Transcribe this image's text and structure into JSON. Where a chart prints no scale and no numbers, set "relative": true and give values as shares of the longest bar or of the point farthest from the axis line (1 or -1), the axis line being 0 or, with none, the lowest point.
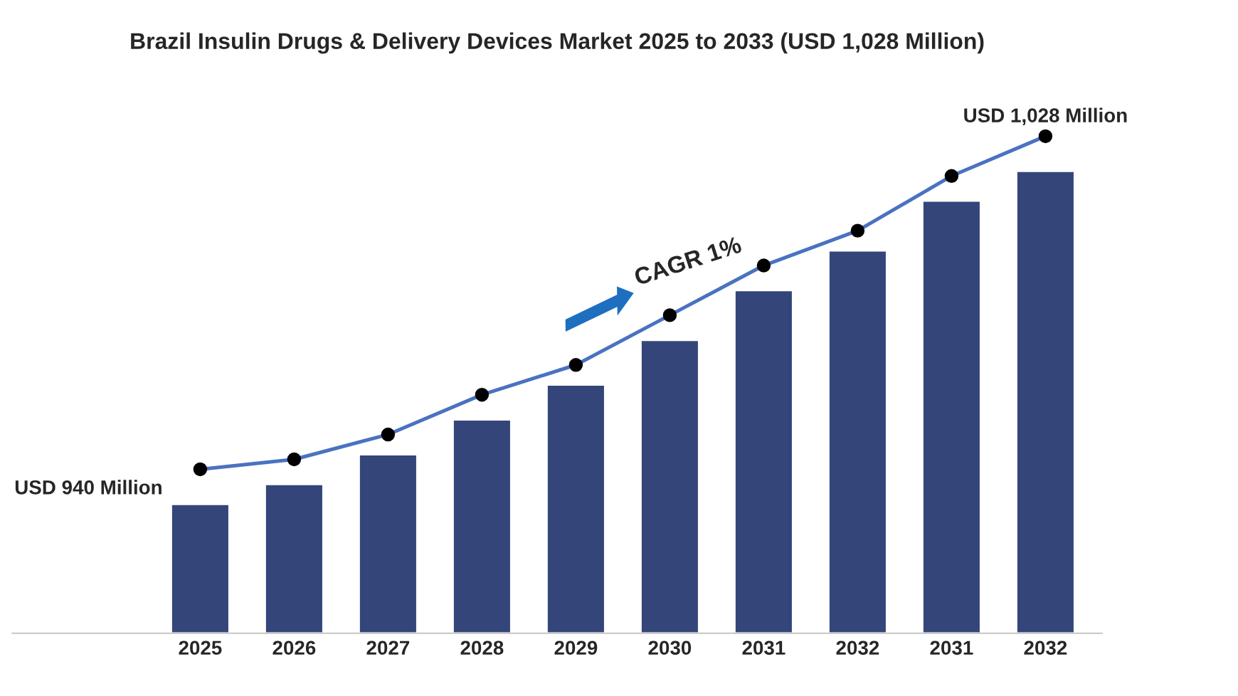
{
  "chart_data": {
    "type": "bar",
    "title": "Brazil Insulin Drugs & Delivery Devices Market 2025 to 2033 (USD 1,028 Million)",
    "relative": true,
    "categories": [
      "2025",
      "2026",
      "2027",
      "2028",
      "2029",
      "2030",
      "2031",
      "2032",
      "2031",
      "2032"
    ],
    "series": [
      {
        "color": "#34457a",
        "values": [
          0.26,
          0.3,
          0.36,
          0.43,
          0.5,
          0.59,
          0.69,
          0.77,
          0.87,
          0.93
        ]
      },
      {
        "type": "line",
        "color": "#4a72c0",
        "marker": "circle",
        "values": [
          0.33,
          0.35,
          0.4,
          0.48,
          0.54,
          0.64,
          0.74,
          0.81,
          0.92,
          1.0
        ]
      }
    ],
    "annotations": [
      "USD 940 Million",
      "USD 1,028 Million",
      "CAGR 1%"
    ]
  }
}
